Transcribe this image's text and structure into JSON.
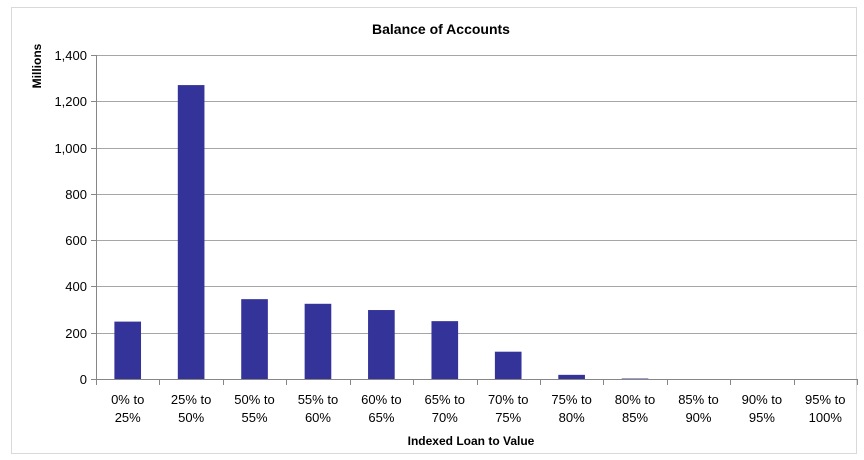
{
  "chart_data": {
    "type": "bar",
    "title": "Balance of Accounts",
    "xlabel": "Indexed Loan to Value",
    "ylabel": "Millions",
    "ylim": [
      0,
      1400
    ],
    "yticks": [
      0,
      200,
      400,
      600,
      800,
      1000,
      1200,
      1400
    ],
    "ytick_labels": [
      "0",
      "200",
      "400",
      "600",
      "800",
      "1,000",
      "1,200",
      "1,400"
    ],
    "grid": true,
    "legend": "none",
    "bar_color": "#333399",
    "categories": [
      [
        "0% to",
        "25%"
      ],
      [
        "25% to",
        "50%"
      ],
      [
        "50% to",
        "55%"
      ],
      [
        "55% to",
        "60%"
      ],
      [
        "60% to",
        "65%"
      ],
      [
        "65% to",
        "70%"
      ],
      [
        "70% to",
        "75%"
      ],
      [
        "75% to",
        "80%"
      ],
      [
        "80% to",
        "85%"
      ],
      [
        "85% to",
        "90%"
      ],
      [
        "90% to",
        "95%"
      ],
      [
        "95% to",
        "100%"
      ]
    ],
    "values": [
      248,
      1270,
      345,
      325,
      298,
      250,
      118,
      18,
      2,
      0,
      0,
      0
    ]
  }
}
